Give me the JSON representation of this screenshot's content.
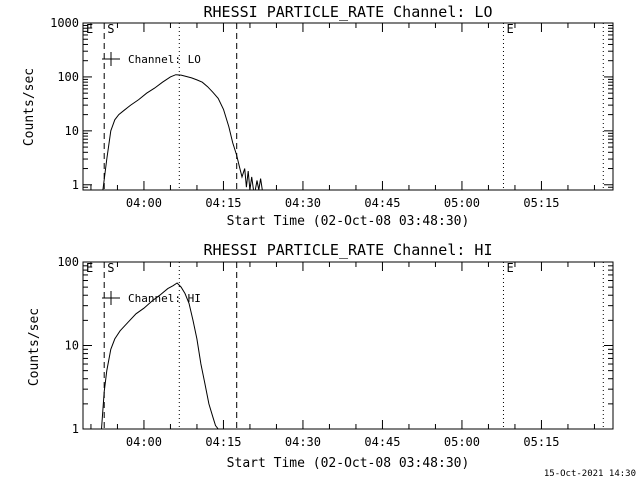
{
  "footer_timestamp": "15-Oct-2021 14:30",
  "chart_data": [
    {
      "type": "line",
      "title": "RHESSI PARTICLE_RATE Channel: LO",
      "xlabel": "Start Time (02-Oct-08 03:48:30)",
      "ylabel": "Counts/sec",
      "y_scale": "log",
      "ylim": [
        0.8,
        1000
      ],
      "xlim": [
        "03:48:30",
        "05:28:30"
      ],
      "x_ticks": [
        "04:00",
        "04:15",
        "04:30",
        "04:45",
        "05:00",
        "05:15"
      ],
      "y_ticks": [
        "1",
        "10",
        "100",
        "1000"
      ],
      "legend": {
        "location": "upper-left",
        "entries": [
          "Channel: LO"
        ]
      },
      "series": [
        {
          "name": "Channel: LO",
          "x": [
            "03:52:15",
            "03:53:00",
            "03:53:45",
            "03:54:30",
            "03:55:15",
            "03:56:15",
            "03:57:30",
            "03:59:00",
            "04:00:30",
            "04:02:00",
            "04:03:30",
            "04:05:00",
            "04:06:00",
            "04:07:00",
            "04:08:00",
            "04:09:00",
            "04:10:00",
            "04:11:00",
            "04:12:00",
            "04:13:00",
            "04:14:00",
            "04:15:00",
            "04:16:00",
            "04:16:45",
            "04:17:30",
            "04:18:00",
            "04:18:30",
            "04:19:00",
            "04:19:20",
            "04:19:40",
            "04:20:00",
            "04:20:20",
            "04:20:40",
            "04:21:00",
            "04:21:20",
            "04:21:40",
            "04:22:00",
            "04:22:20",
            "04:22:40"
          ],
          "values": [
            0.8,
            3,
            10,
            16,
            20,
            24,
            30,
            38,
            50,
            62,
            80,
            100,
            110,
            108,
            102,
            96,
            88,
            80,
            66,
            52,
            40,
            25,
            12,
            6,
            3.5,
            2.2,
            1.4,
            2,
            0.9,
            1.8,
            0.8,
            1.4,
            0.8,
            0.8,
            1.2,
            0.8,
            1.3,
            0.8,
            0.8
          ]
        }
      ],
      "markers": [
        {
          "label": "E",
          "x": "03:48:30",
          "style": "dashed"
        },
        {
          "label": "S",
          "x": "03:52:30",
          "style": "dashed"
        },
        {
          "label": "",
          "x": "04:06:40",
          "style": "dotted"
        },
        {
          "label": "",
          "x": "04:17:30",
          "style": "dashed"
        },
        {
          "label": "E",
          "x": "05:07:50",
          "style": "dotted"
        },
        {
          "label": "",
          "x": "05:26:40",
          "style": "dotted"
        }
      ]
    },
    {
      "type": "line",
      "title": "RHESSI PARTICLE_RATE Channel: HI",
      "xlabel": "Start Time (02-Oct-08 03:48:30)",
      "ylabel": "Counts/sec",
      "y_scale": "log",
      "ylim": [
        1,
        100
      ],
      "xlim": [
        "03:48:30",
        "05:28:30"
      ],
      "x_ticks": [
        "04:00",
        "04:15",
        "04:30",
        "04:45",
        "05:00",
        "05:15"
      ],
      "y_ticks": [
        "1",
        "10",
        "100"
      ],
      "legend": {
        "location": "upper-left",
        "entries": [
          "Channel: HI"
        ]
      },
      "series": [
        {
          "name": "Channel: HI",
          "x": [
            "03:52:00",
            "03:52:30",
            "03:53:00",
            "03:53:45",
            "03:54:30",
            "03:55:30",
            "03:57:00",
            "03:58:30",
            "04:00:00",
            "04:01:30",
            "04:03:00",
            "04:04:30",
            "04:05:30",
            "04:06:15",
            "04:07:00",
            "04:07:45",
            "04:08:30",
            "04:09:15",
            "04:10:00",
            "04:10:45",
            "04:11:30",
            "04:12:15",
            "04:13:00",
            "04:13:30",
            "04:14:00"
          ],
          "values": [
            1,
            2.8,
            5,
            9,
            12,
            15,
            19,
            24,
            28,
            34,
            40,
            48,
            52,
            56,
            50,
            42,
            32,
            20,
            12,
            6,
            3.5,
            2,
            1.4,
            1.1,
            1
          ]
        }
      ],
      "markers": [
        {
          "label": "E",
          "x": "03:48:30",
          "style": "dashed"
        },
        {
          "label": "S",
          "x": "03:52:30",
          "style": "dashed"
        },
        {
          "label": "",
          "x": "04:06:40",
          "style": "dotted"
        },
        {
          "label": "",
          "x": "04:17:30",
          "style": "dashed"
        },
        {
          "label": "E",
          "x": "05:07:50",
          "style": "dotted"
        },
        {
          "label": "",
          "x": "05:26:40",
          "style": "dotted"
        }
      ]
    }
  ]
}
